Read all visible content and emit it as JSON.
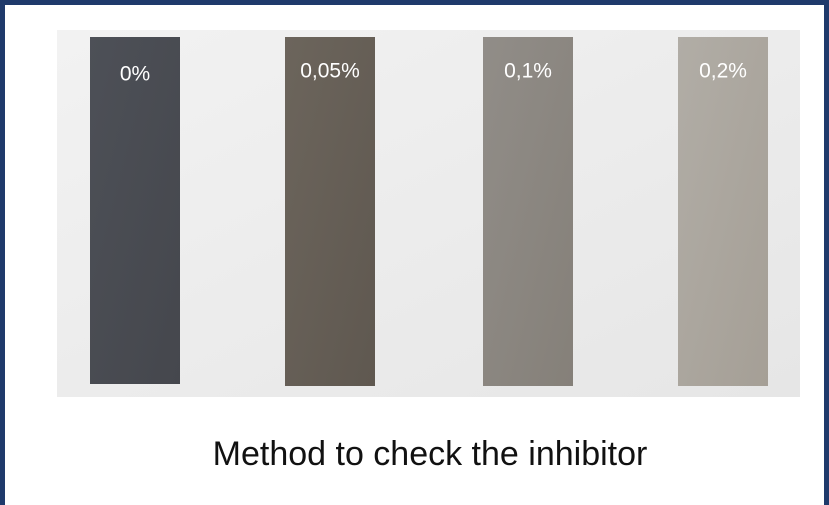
{
  "photo": {
    "samples": [
      {
        "label": "0%"
      },
      {
        "label": "0,05%"
      },
      {
        "label": "0,1%"
      },
      {
        "label": "0,2%"
      }
    ]
  },
  "caption": "Method to check the inhibitor"
}
